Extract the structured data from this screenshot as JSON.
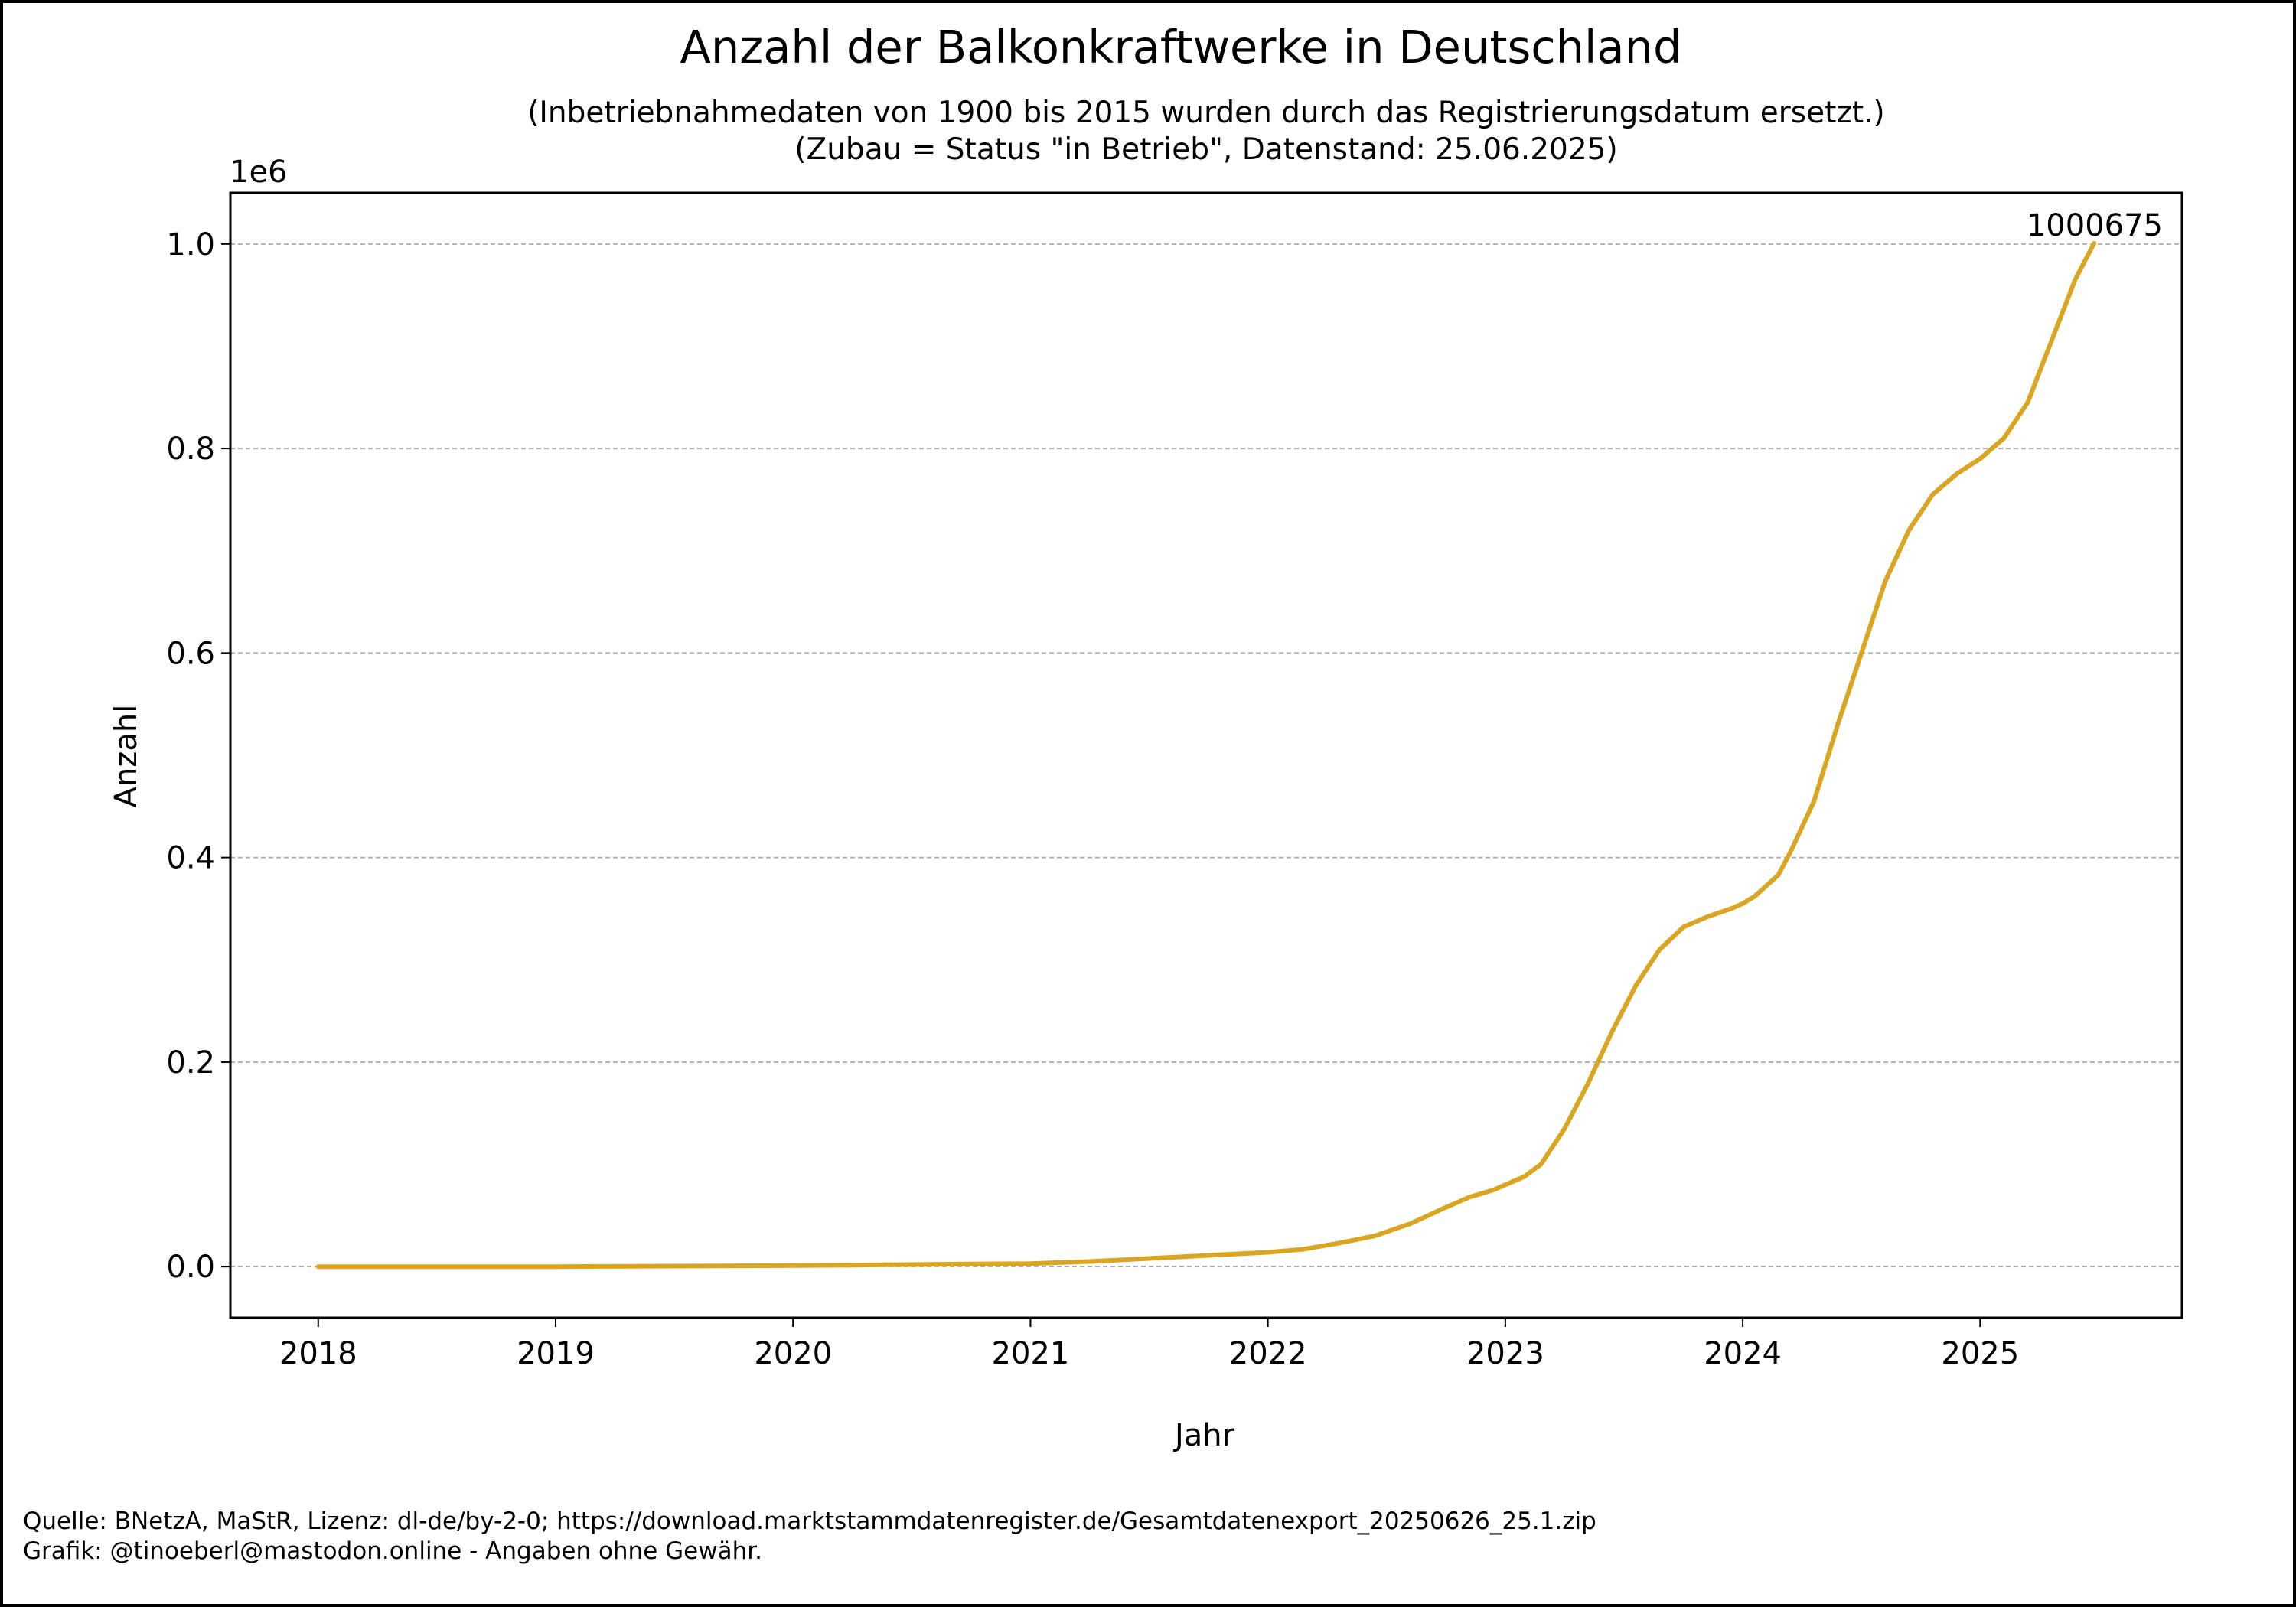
{
  "chart_data": {
    "type": "line",
    "title": "Anzahl der Balkonkraftwerke in Deutschland",
    "subtitle": [
      "(Inbetriebnahmedaten von 1900 bis 2015 wurden durch das Registrierungsdatum ersetzt.)",
      "(Zubau = Status \"in Betrieb\", Datenstand: 25.06.2025)"
    ],
    "xlabel": "Jahr",
    "ylabel": "Anzahl",
    "y_offset_label": "1e6",
    "xlim": [
      2017.63,
      2025.85
    ],
    "ylim": [
      -0.05,
      1.05
    ],
    "x_ticks": [
      {
        "value": 2018,
        "label": "2018"
      },
      {
        "value": 2019,
        "label": "2019"
      },
      {
        "value": 2020,
        "label": "2020"
      },
      {
        "value": 2021,
        "label": "2021"
      },
      {
        "value": 2022,
        "label": "2022"
      },
      {
        "value": 2023,
        "label": "2023"
      },
      {
        "value": 2024,
        "label": "2024"
      },
      {
        "value": 2025,
        "label": "2025"
      }
    ],
    "y_ticks": [
      {
        "value": 0.0,
        "label": "0.0"
      },
      {
        "value": 0.2,
        "label": "0.2"
      },
      {
        "value": 0.4,
        "label": "0.4"
      },
      {
        "value": 0.6,
        "label": "0.6"
      },
      {
        "value": 0.8,
        "label": "0.8"
      },
      {
        "value": 1.0,
        "label": "1.0"
      }
    ],
    "grid": "horizontal-dashed",
    "series": [
      {
        "color": "#DAA520",
        "x": [
          2018.0,
          2018.5,
          2019.0,
          2019.5,
          2020.0,
          2020.25,
          2020.5,
          2020.75,
          2021.0,
          2021.25,
          2021.5,
          2021.75,
          2022.0,
          2022.15,
          2022.3,
          2022.45,
          2022.6,
          2022.75,
          2022.85,
          2022.95,
          2023.0,
          2023.08,
          2023.15,
          2023.25,
          2023.35,
          2023.45,
          2023.55,
          2023.65,
          2023.75,
          2023.85,
          2023.95,
          2024.0,
          2024.05,
          2024.15,
          2024.2,
          2024.3,
          2024.4,
          2024.5,
          2024.6,
          2024.7,
          2024.8,
          2024.9,
          2025.0,
          2025.1,
          2025.2,
          2025.3,
          2025.4,
          2025.48
        ],
        "y": [
          0.0,
          0.0,
          0.0,
          0.0005,
          0.001,
          0.0015,
          0.002,
          0.0025,
          0.003,
          0.005,
          0.008,
          0.011,
          0.014,
          0.017,
          0.023,
          0.03,
          0.042,
          0.058,
          0.068,
          0.075,
          0.08,
          0.088,
          0.1,
          0.135,
          0.18,
          0.23,
          0.275,
          0.31,
          0.332,
          0.342,
          0.35,
          0.355,
          0.362,
          0.383,
          0.405,
          0.455,
          0.53,
          0.6,
          0.67,
          0.72,
          0.755,
          0.775,
          0.79,
          0.81,
          0.845,
          0.905,
          0.965,
          1.000675
        ],
        "end_label": "1000675"
      }
    ]
  },
  "footer": {
    "source": "Quelle: BNetzA, MaStR, Lizenz: dl-de/by-2-0; https://download.marktstammdatenregister.de/Gesamtdatenexport_20250626_25.1.zip",
    "credit": "Grafik: @tinoeberl@mastodon.online - Angaben ohne Gewähr."
  }
}
